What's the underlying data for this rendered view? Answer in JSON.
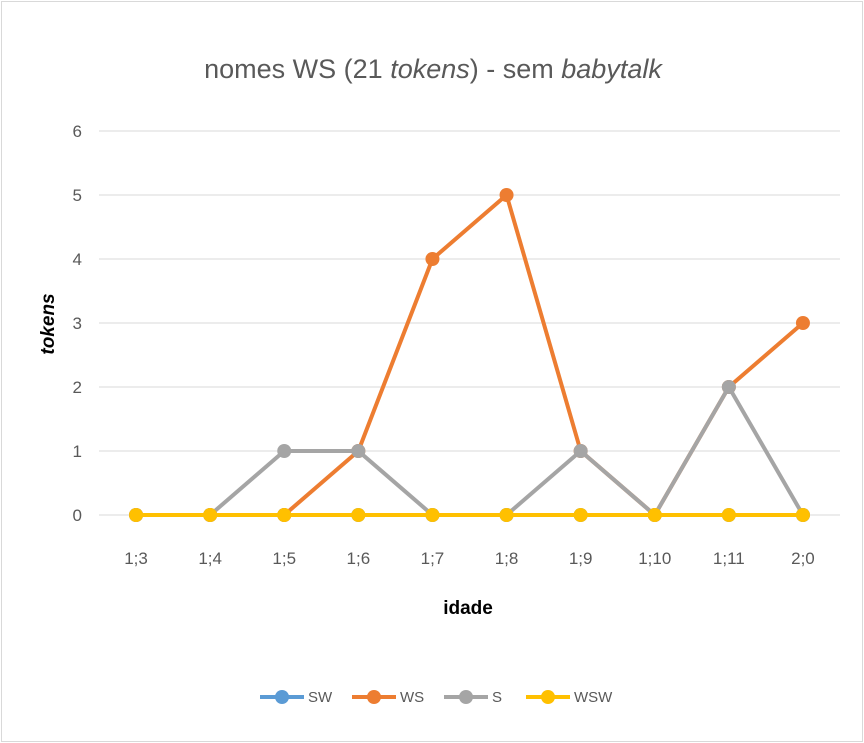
{
  "chart_data": {
    "type": "line",
    "title": {
      "prefix": "nomes WS (21 ",
      "italic1": "tokens",
      "middle": ") - sem ",
      "italic2": "babytalk"
    },
    "xlabel": "idade",
    "ylabel": "tokens",
    "categories": [
      "1;3",
      "1;4",
      "1;5",
      "1;6",
      "1;7",
      "1;8",
      "1;9",
      "1;10",
      "1;11",
      "2;0"
    ],
    "ylim": [
      0,
      6
    ],
    "yticks": [
      0,
      1,
      2,
      3,
      4,
      5,
      6
    ],
    "grid": true,
    "legend_position": "bottom",
    "series": [
      {
        "name": "SW",
        "color": "#5b9bd5",
        "values": [
          0,
          0,
          0,
          0,
          0,
          0,
          0,
          0,
          0,
          0
        ]
      },
      {
        "name": "WS",
        "color": "#ed7d31",
        "values": [
          0,
          0,
          0,
          1,
          4,
          5,
          1,
          0,
          2,
          3
        ]
      },
      {
        "name": "S",
        "color": "#a5a5a5",
        "values": [
          0,
          0,
          1,
          1,
          0,
          0,
          1,
          0,
          2,
          0
        ]
      },
      {
        "name": "WSW",
        "color": "#ffc000",
        "values": [
          0,
          0,
          0,
          0,
          0,
          0,
          0,
          0,
          0,
          0
        ]
      }
    ]
  }
}
